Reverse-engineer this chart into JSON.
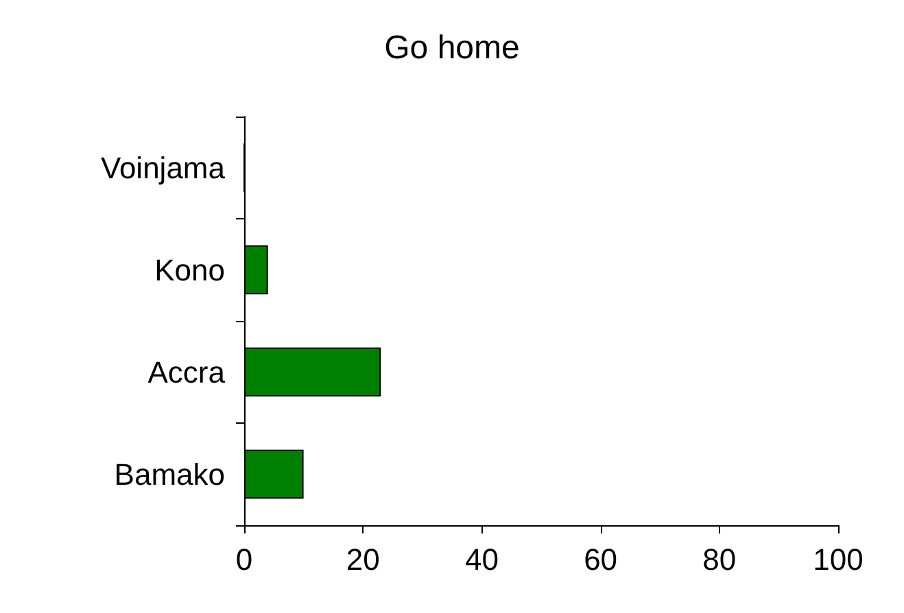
{
  "chart_data": {
    "type": "bar",
    "orientation": "horizontal",
    "title": "Go home",
    "categories": [
      "Voinjama",
      "Kono",
      "Accra",
      "Bamako"
    ],
    "values": [
      0,
      4,
      23,
      10
    ],
    "color": "#008000",
    "xlim": [
      0,
      100
    ],
    "xticks": [
      0,
      20,
      40,
      60,
      80,
      100
    ],
    "grid": false
  }
}
